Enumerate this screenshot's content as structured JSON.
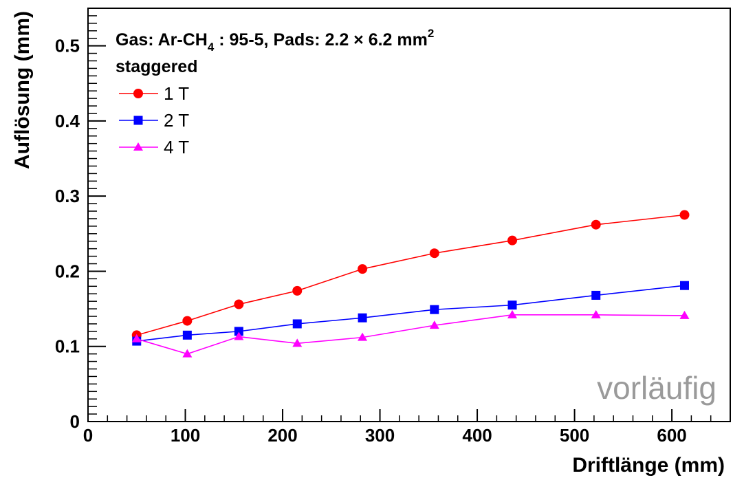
{
  "chart_data": {
    "type": "line",
    "title": "",
    "xlabel": "Driftlänge (mm)",
    "ylabel": "Auflösung (mm)",
    "xlim": [
      0,
      660
    ],
    "ylim": [
      0,
      0.55
    ],
    "x_ticks": [
      "0",
      "100",
      "200",
      "300",
      "400",
      "500",
      "600"
    ],
    "y_ticks": [
      "0",
      "0.1",
      "0.2",
      "0.3",
      "0.4",
      "0.5"
    ],
    "grid": false,
    "legend_placement": "top-left",
    "legend_header": {
      "line1_prefix": "Gas:  Ar-CH",
      "line1_sub": "4",
      "line1_mid": " : 95-5, Pads: 2.2 × 6.2 mm",
      "line1_sup": "2",
      "line2": "staggered"
    },
    "watermark": "vorläufig",
    "series": [
      {
        "name": "1 T",
        "color": "#ff0000",
        "marker": "circle",
        "x": [
          50,
          102,
          155,
          215,
          282,
          356,
          436,
          522,
          613
        ],
        "y": [
          0.115,
          0.134,
          0.156,
          0.174,
          0.203,
          0.224,
          0.241,
          0.262,
          0.275
        ]
      },
      {
        "name": "2 T",
        "color": "#0000ff",
        "marker": "square",
        "x": [
          50,
          102,
          155,
          215,
          282,
          356,
          436,
          522,
          613
        ],
        "y": [
          0.107,
          0.115,
          0.12,
          0.13,
          0.138,
          0.149,
          0.155,
          0.168,
          0.181
        ]
      },
      {
        "name": "4 T",
        "color": "#ff00ff",
        "marker": "triangle",
        "x": [
          50,
          102,
          155,
          215,
          282,
          356,
          436,
          522,
          613
        ],
        "y": [
          0.11,
          0.09,
          0.113,
          0.104,
          0.112,
          0.128,
          0.142,
          0.142,
          0.141
        ]
      }
    ]
  }
}
